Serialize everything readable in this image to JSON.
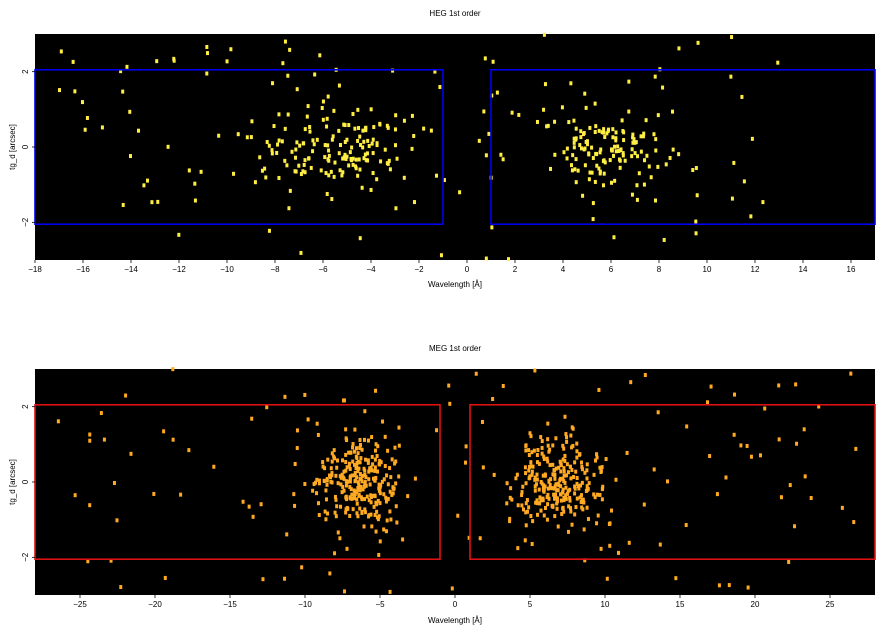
{
  "chart_data": [
    {
      "type": "heatmap",
      "title": "HEG 1st order",
      "xlabel": "Wavelength [Å]",
      "ylabel": "tg_d [arcsec]",
      "xlim": [
        -18,
        17
      ],
      "ylim": [
        -3.0,
        3.0
      ],
      "xticks": [
        -18,
        -16,
        -14,
        -12,
        -10,
        -8,
        -6,
        -4,
        -2,
        0,
        2,
        4,
        6,
        8,
        10,
        12,
        14,
        16
      ],
      "xtick_labels": [
        "−18",
        "−16",
        "−14",
        "−12",
        "−10",
        "−8",
        "−6",
        "−4",
        "−2",
        "0",
        "2",
        "4",
        "6",
        "8",
        "10",
        "12",
        "14",
        "16"
      ],
      "yticks": [
        -2,
        0,
        2
      ],
      "ytick_labels": [
        "−2",
        "0",
        "2"
      ],
      "background_color": "#000000",
      "event_color": "#ffee44",
      "region_color": "#0000ee",
      "regions": [
        {
          "x": [
            -18,
            -1.0
          ],
          "y": [
            -2.05,
            2.05
          ]
        },
        {
          "x": [
            1.0,
            17
          ],
          "y": [
            -2.05,
            2.05
          ]
        }
      ],
      "clusters": [
        {
          "x_center": -5.5,
          "x_spread": 3.2,
          "y_spread": 0.7,
          "count": 150
        },
        {
          "x_center": 5.8,
          "x_spread": 2.4,
          "y_spread": 0.7,
          "count": 130
        }
      ],
      "halo": {
        "x_range": [
          -17,
          13
        ],
        "y_range": [
          -3.0,
          3.0
        ],
        "count": 120
      }
    },
    {
      "type": "heatmap",
      "title": "MEG 1st order",
      "xlabel": "Wavelength [Å]",
      "ylabel": "tg_d [arcsec]",
      "xlim": [
        -28,
        28
      ],
      "ylim": [
        -3.0,
        3.0
      ],
      "xticks": [
        -25,
        -20,
        -15,
        -10,
        -5,
        0,
        5,
        10,
        15,
        20,
        25
      ],
      "xtick_labels": [
        "−25",
        "−20",
        "−15",
        "−10",
        "−5",
        "0",
        "5",
        "10",
        "15",
        "20",
        "25"
      ],
      "yticks": [
        -2,
        0,
        2
      ],
      "ytick_labels": [
        "−2",
        "0",
        "2"
      ],
      "background_color": "#000000",
      "event_color": "#ffaa22",
      "region_color": "#dd1111",
      "regions": [
        {
          "x": [
            -28,
            -1.0
          ],
          "y": [
            -2.05,
            2.05
          ]
        },
        {
          "x": [
            1.0,
            28
          ],
          "y": [
            -2.05,
            2.05
          ]
        }
      ],
      "clusters": [
        {
          "x_center": -6.5,
          "x_spread": 2.6,
          "y_spread": 0.75,
          "count": 260
        },
        {
          "x_center": 6.8,
          "x_spread": 2.6,
          "y_spread": 0.75,
          "count": 260
        }
      ],
      "halo": {
        "x_range": [
          -27,
          27
        ],
        "y_range": [
          -3.0,
          3.0
        ],
        "count": 140
      }
    }
  ]
}
